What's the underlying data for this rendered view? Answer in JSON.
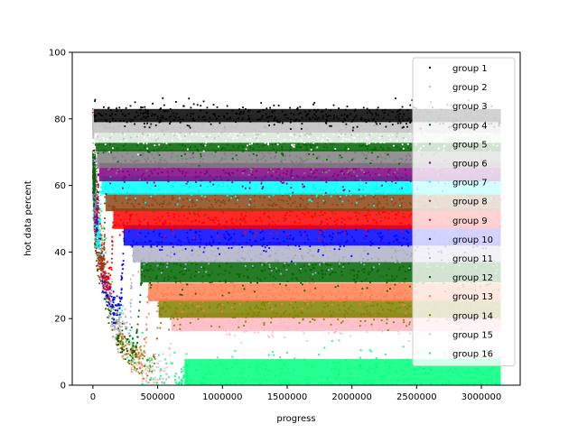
{
  "chart_data": {
    "type": "scatter",
    "xlabel": "progress",
    "ylabel": "hot data percent",
    "xlim": [
      -160000,
      3300000
    ],
    "ylim": [
      0,
      100
    ],
    "x_ticks": [
      {
        "value": 0,
        "label": "0"
      },
      {
        "value": 500000,
        "label": "500000"
      },
      {
        "value": 1000000,
        "label": "1000000"
      },
      {
        "value": 1500000,
        "label": "1500000"
      },
      {
        "value": 2000000,
        "label": "2000000"
      },
      {
        "value": 2500000,
        "label": "2500000"
      },
      {
        "value": 3000000,
        "label": "3000000"
      }
    ],
    "y_ticks": [
      {
        "value": 0,
        "label": "0"
      },
      {
        "value": 20,
        "label": "20"
      },
      {
        "value": 40,
        "label": "40"
      },
      {
        "value": 60,
        "label": "60"
      },
      {
        "value": 80,
        "label": "80"
      },
      {
        "value": 100,
        "label": "100"
      }
    ],
    "grid": false,
    "legend_position": "top-right",
    "series": [
      {
        "name": "group 1",
        "color": "#000000",
        "steady_level": 81,
        "spread": 1.8,
        "start_level": 30,
        "dip_min": 30,
        "dip_end_x": 0
      },
      {
        "name": "group 2",
        "color": "#c0c0c0",
        "steady_level": 78,
        "spread": 2.0,
        "start_level": 78,
        "dip_min": 78,
        "dip_end_x": 5000
      },
      {
        "name": "group 3",
        "color": "#ffffff",
        "steady_level": 75,
        "spread": 2.0,
        "start_level": 75,
        "dip_min": 75,
        "dip_end_x": 8000
      },
      {
        "name": "group 4",
        "color": "#006400",
        "steady_level": 73,
        "spread": 2.5,
        "start_level": 73,
        "dip_min": 60,
        "dip_end_x": 15000
      },
      {
        "name": "group 5",
        "color": "#808080",
        "steady_level": 68,
        "spread": 2.5,
        "start_level": 68,
        "dip_min": 55,
        "dip_end_x": 25000
      },
      {
        "name": "group 6",
        "color": "#800080",
        "steady_level": 64,
        "spread": 2.5,
        "start_level": 64,
        "dip_min": 50,
        "dip_end_x": 40000
      },
      {
        "name": "group 7",
        "color": "#00ffff",
        "steady_level": 60,
        "spread": 2.5,
        "start_level": 60,
        "dip_min": 45,
        "dip_end_x": 60000
      },
      {
        "name": "group 8",
        "color": "#8b4513",
        "steady_level": 55,
        "spread": 2.5,
        "start_level": 60,
        "dip_min": 35,
        "dip_end_x": 90000
      },
      {
        "name": "group 9",
        "color": "#ff0000",
        "steady_level": 50,
        "spread": 2.8,
        "start_level": 80,
        "dip_min": 30,
        "dip_end_x": 150000
      },
      {
        "name": "group 10",
        "color": "#0000ff",
        "steady_level": 45,
        "spread": 2.8,
        "start_level": 80,
        "dip_min": 22,
        "dip_end_x": 230000
      },
      {
        "name": "group 11",
        "color": "#b0b0c8",
        "steady_level": 40,
        "spread": 2.8,
        "start_level": 80,
        "dip_min": 16,
        "dip_end_x": 300000
      },
      {
        "name": "group 12",
        "color": "#006400",
        "steady_level": 34,
        "spread": 2.8,
        "start_level": 80,
        "dip_min": 10,
        "dip_end_x": 360000
      },
      {
        "name": "group 13",
        "color": "#ff7f50",
        "steady_level": 28,
        "spread": 2.5,
        "start_level": 80,
        "dip_min": 7,
        "dip_end_x": 420000
      },
      {
        "name": "group 14",
        "color": "#808000",
        "steady_level": 23,
        "spread": 2.5,
        "start_level": 80,
        "dip_min": 5,
        "dip_end_x": 500000
      },
      {
        "name": "group 15",
        "color": "#ffb6c1",
        "steady_level": 19,
        "spread": 2.5,
        "start_level": 80,
        "dip_min": 3,
        "dip_end_x": 600000
      },
      {
        "name": "group 16",
        "color": "#00ff7f",
        "steady_level": 4,
        "spread": 3.5,
        "start_level": 80,
        "dip_min": 1,
        "dip_end_x": 700000
      }
    ]
  }
}
